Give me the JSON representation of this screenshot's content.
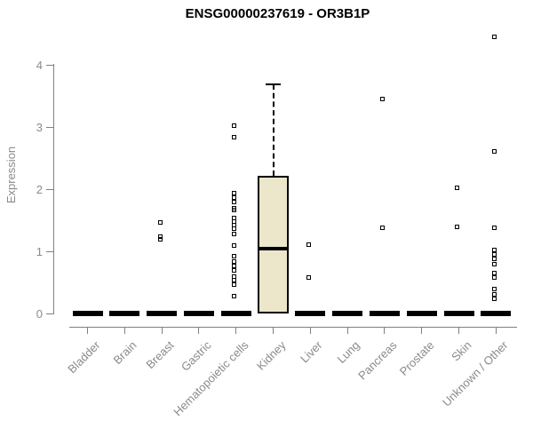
{
  "chart_data": {
    "type": "boxplot",
    "title": "ENSG00000237619 - OR3B1P",
    "xlabel": "",
    "ylabel": "Expression",
    "ylim": [
      0,
      4.6
    ],
    "yticks": [
      0,
      1,
      2,
      3,
      4
    ],
    "grid": false,
    "legend": null,
    "categories": [
      "Bladder",
      "Brain",
      "Breast",
      "Gastric",
      "Hematopoietic cells",
      "Kidney",
      "Liver",
      "Lung",
      "Pancreas",
      "Prostate",
      "Skin",
      "Unknown / Other"
    ],
    "boxes": [
      {
        "category": "Bladder",
        "q1": 0,
        "median": 0,
        "q3": 0,
        "whisker_low": 0,
        "whisker_high": 0,
        "outliers": []
      },
      {
        "category": "Brain",
        "q1": 0,
        "median": 0,
        "q3": 0,
        "whisker_low": 0,
        "whisker_high": 0,
        "outliers": []
      },
      {
        "category": "Breast",
        "q1": 0,
        "median": 0,
        "q3": 0,
        "whisker_low": 0,
        "whisker_high": 0,
        "outliers": [
          1.47,
          1.24,
          1.19
        ]
      },
      {
        "category": "Gastric",
        "q1": 0,
        "median": 0,
        "q3": 0,
        "whisker_low": 0,
        "whisker_high": 0,
        "outliers": []
      },
      {
        "category": "Hematopoietic cells",
        "q1": 0,
        "median": 0,
        "q3": 0,
        "whisker_low": 0,
        "whisker_high": 0,
        "outliers": [
          3.02,
          2.83,
          1.94,
          1.87,
          1.8,
          1.69,
          1.66,
          1.54,
          1.48,
          1.42,
          1.36,
          1.28,
          1.09,
          0.92,
          0.83,
          0.76,
          0.69,
          0.6,
          0.54,
          0.47,
          0.28
        ]
      },
      {
        "category": "Kidney",
        "q1": 0,
        "median": 1.05,
        "q3": 2.22,
        "whisker_low": 0,
        "whisker_high": 3.69,
        "outliers": []
      },
      {
        "category": "Liver",
        "q1": 0,
        "median": 0,
        "q3": 0,
        "whisker_low": 0,
        "whisker_high": 0,
        "outliers": [
          1.11,
          0.58
        ]
      },
      {
        "category": "Lung",
        "q1": 0,
        "median": 0,
        "q3": 0,
        "whisker_low": 0,
        "whisker_high": 0,
        "outliers": []
      },
      {
        "category": "Pancreas",
        "q1": 0,
        "median": 0,
        "q3": 0,
        "whisker_low": 0,
        "whisker_high": 0,
        "outliers": [
          3.45,
          1.38
        ]
      },
      {
        "category": "Prostate",
        "q1": 0,
        "median": 0,
        "q3": 0,
        "whisker_low": 0,
        "whisker_high": 0,
        "outliers": []
      },
      {
        "category": "Skin",
        "q1": 0,
        "median": 0,
        "q3": 0,
        "whisker_low": 0,
        "whisker_high": 0,
        "outliers": [
          2.02,
          1.4
        ]
      },
      {
        "category": "Unknown / Other",
        "q1": 0,
        "median": 0,
        "q3": 0,
        "whisker_low": 0,
        "whisker_high": 0,
        "outliers": [
          4.45,
          2.61,
          1.38,
          1.02,
          0.95,
          0.88,
          0.79,
          0.65,
          0.58,
          0.4,
          0.31,
          0.23
        ]
      }
    ],
    "colors": {
      "box_fill": "#ece6ca",
      "box_stroke": "#000000",
      "axis_line": "#808080",
      "axis_text": "#8a8a8a",
      "title_text": "#000000",
      "background": "#ffffff"
    }
  }
}
